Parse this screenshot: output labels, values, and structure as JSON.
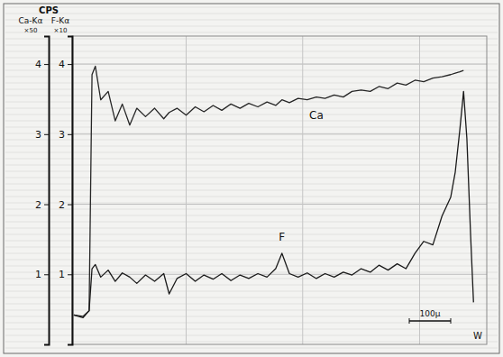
{
  "chart_data": {
    "type": "line",
    "title": "CPS",
    "ylabel": "Ca-Kα",
    "yscale_label": "×50",
    "y2label": "F-Kα",
    "y2scale_label": "×10",
    "x": [
      4,
      26,
      41,
      48,
      56,
      69,
      87,
      104,
      121,
      139,
      156,
      177,
      199,
      221,
      234,
      253,
      275,
      297,
      318,
      340,
      361,
      383,
      405,
      426,
      448,
      470,
      491,
      506,
      524,
      545,
      567,
      589,
      610,
      632,
      654,
      675,
      697,
      719,
      740,
      762,
      784,
      805,
      827,
      848,
      870,
      892,
      913,
      924,
      935,
      944,
      952,
      961,
      968
    ],
    "series": [
      {
        "name": "Ca",
        "color": "#262626",
        "values": [
          0.42,
          0.4,
          0.48,
          3.85,
          3.97,
          3.49,
          3.61,
          3.19,
          3.43,
          3.13,
          3.37,
          3.25,
          3.37,
          3.22,
          3.31,
          3.37,
          3.27,
          3.39,
          3.32,
          3.41,
          3.34,
          3.43,
          3.37,
          3.44,
          3.39,
          3.46,
          3.41,
          3.49,
          3.45,
          3.51,
          3.49,
          3.53,
          3.51,
          3.56,
          3.53,
          3.61,
          3.63,
          3.61,
          3.68,
          3.65,
          3.73,
          3.7,
          3.77,
          3.75,
          3.8,
          3.82,
          3.85,
          3.87,
          3.89,
          3.91,
          null,
          null,
          null
        ]
      },
      {
        "name": "F",
        "color": "#1a1a1a",
        "axis": "y2",
        "values": [
          0.42,
          0.38,
          0.48,
          1.08,
          1.14,
          0.96,
          1.06,
          0.9,
          1.02,
          0.96,
          0.87,
          0.99,
          0.9,
          1.01,
          0.72,
          0.94,
          1.01,
          0.9,
          0.99,
          0.93,
          1.01,
          0.91,
          0.99,
          0.94,
          1.01,
          0.96,
          1.08,
          1.3,
          1.01,
          0.96,
          1.02,
          0.94,
          1.01,
          0.96,
          1.03,
          0.99,
          1.08,
          1.03,
          1.13,
          1.06,
          1.15,
          1.08,
          1.3,
          1.47,
          1.42,
          1.83,
          2.1,
          2.46,
          3.06,
          3.61,
          2.94,
          1.56,
          0.6
        ]
      }
    ],
    "xlim": [
      0,
      1000
    ],
    "xticks": [
      275,
      556,
      838
    ],
    "ylim": [
      0,
      4.4
    ],
    "yticks": [
      1,
      2,
      3,
      4
    ],
    "y2lim": [
      0,
      4.4
    ],
    "y2ticks": [
      1,
      2,
      3,
      4
    ],
    "grid": true,
    "tick_labels": "y",
    "scale_bar": {
      "value": 100,
      "label": "100μ"
    },
    "annotations": [
      "W"
    ]
  }
}
